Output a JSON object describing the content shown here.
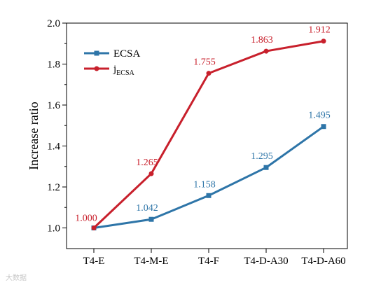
{
  "chart_data": {
    "type": "line",
    "categories": [
      "T4-E",
      "T4-M-E",
      "T4-F",
      "T4-D-A30",
      "T4-D-A60"
    ],
    "ylabel": "Increase ratio",
    "xlabel": "",
    "ylim": [
      1.0,
      2.0
    ],
    "yticks": [
      "1.0",
      "1.2",
      "1.4",
      "1.6",
      "1.8",
      "2.0"
    ],
    "legend_position": "top-left",
    "grid": false,
    "series": [
      {
        "name": "ECSA",
        "color": "#2e75a8",
        "marker": "square",
        "values": [
          1.0,
          1.042,
          1.158,
          1.295,
          1.495
        ],
        "labels": [
          "",
          "1.042",
          "1.158",
          "1.295",
          "1.495"
        ]
      },
      {
        "name": "jECSA",
        "name_main": "j",
        "name_sub": "ECSA",
        "color": "#c8202c",
        "marker": "circle",
        "values": [
          1.0,
          1.265,
          1.755,
          1.863,
          1.912
        ],
        "labels": [
          "1.000",
          "1.265",
          "1.755",
          "1.863",
          "1.912"
        ]
      }
    ]
  },
  "watermark": "大数据"
}
